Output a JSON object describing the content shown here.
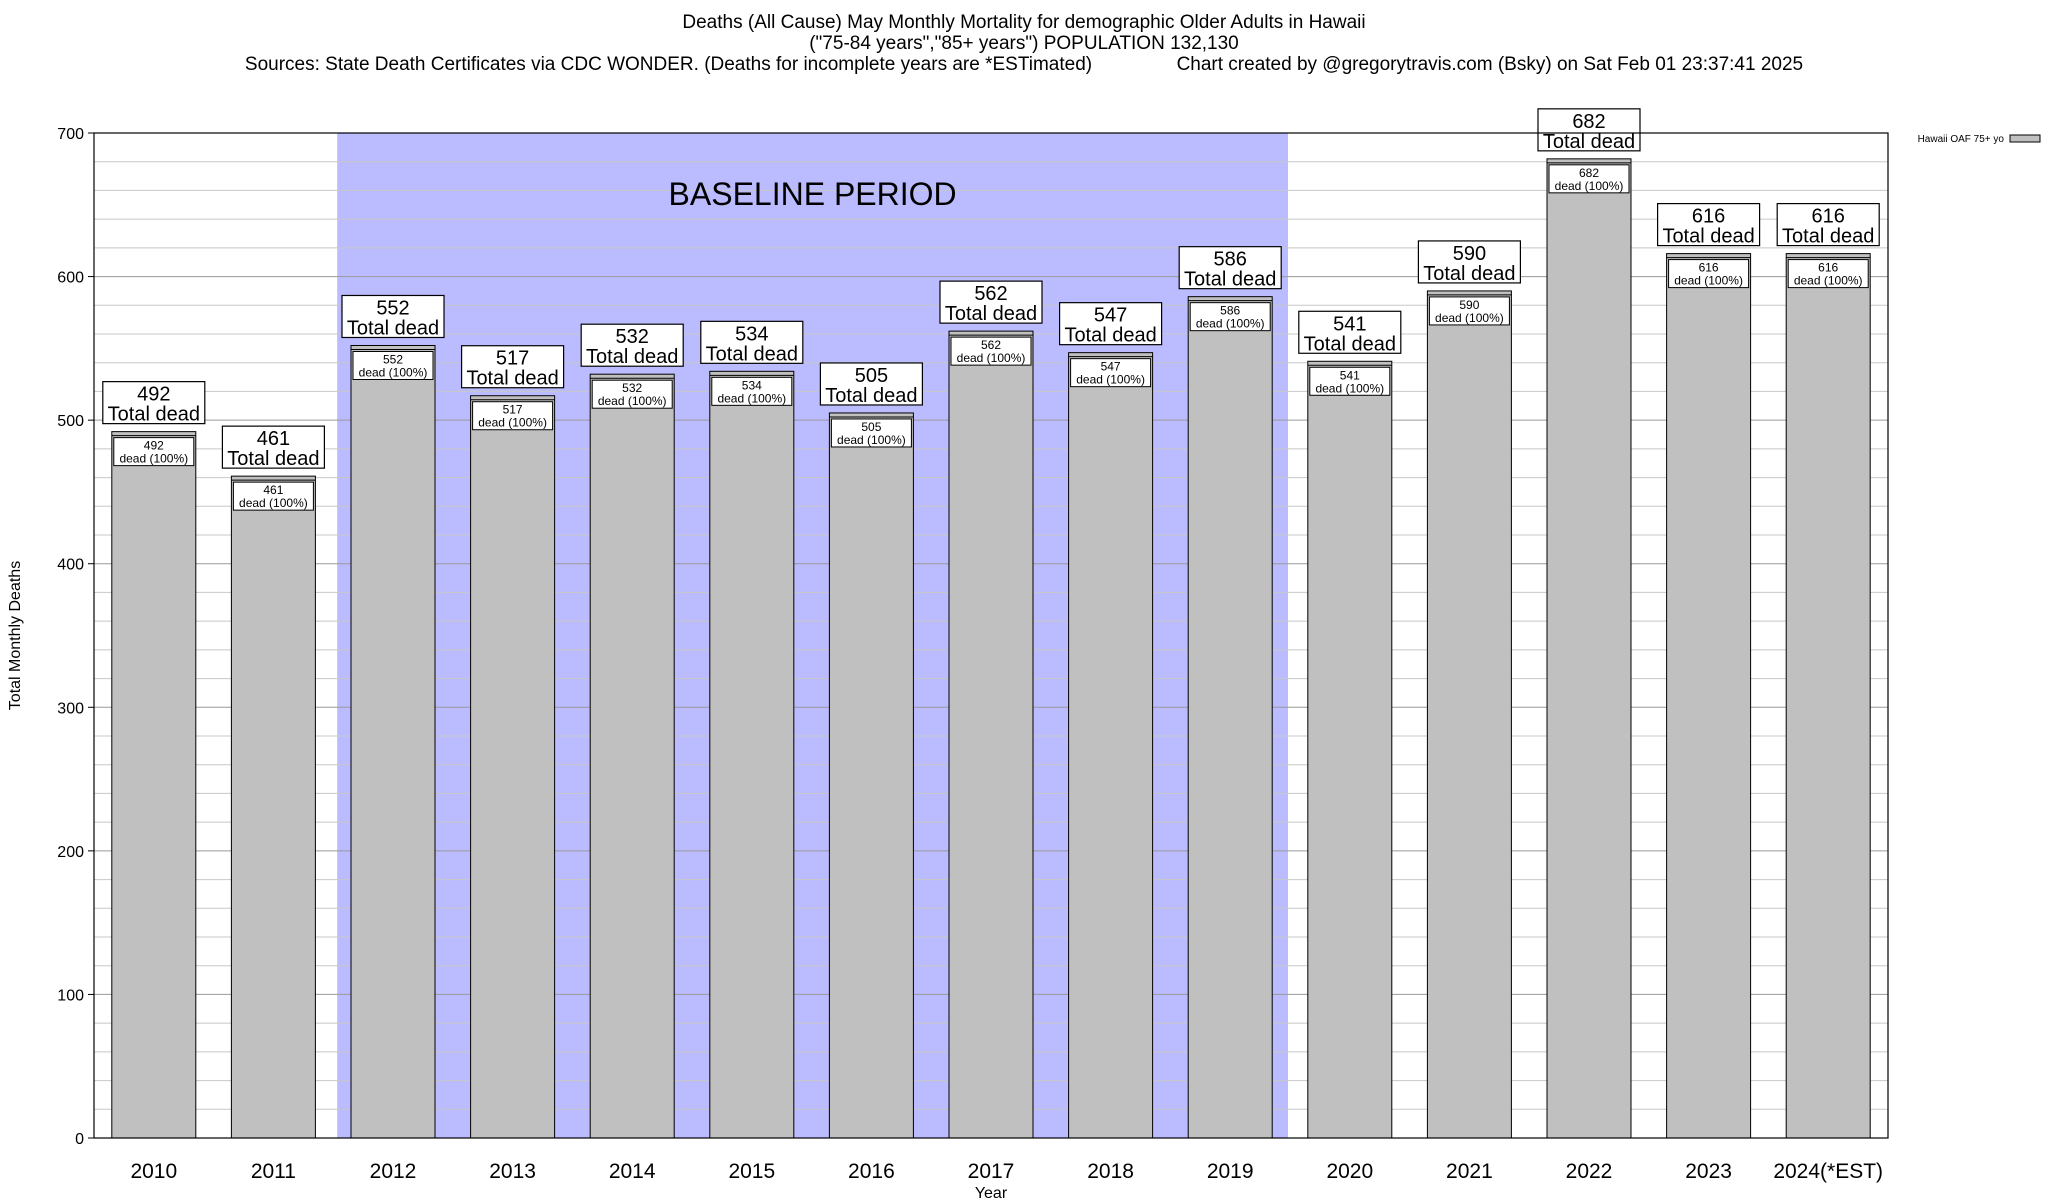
{
  "titles": {
    "line1": "Deaths (All Cause) May Monthly Mortality for demographic Older Adults in Hawaii",
    "line2": "(\"75-84 years\",\"85+ years\") POPULATION 132,130",
    "sources": "Sources: State Death Certificates via CDC WONDER. (Deaths for incomplete years are *ESTimated)",
    "credit": "Chart created by @gregorytravis.com (Bsky) on Sat Feb 01 23:37:41 2025"
  },
  "chart_data": {
    "type": "bar",
    "title": "Deaths (All Cause) May Monthly Mortality for demographic Older Adults in Hawaii",
    "xlabel": "Year",
    "ylabel": "Total Monthly Deaths",
    "ylim": [
      0,
      700
    ],
    "yticks": [
      0,
      100,
      200,
      300,
      400,
      500,
      600,
      700
    ],
    "grid": true,
    "categories": [
      "2010",
      "2011",
      "2012",
      "2013",
      "2014",
      "2015",
      "2016",
      "2017",
      "2018",
      "2019",
      "2020",
      "2021",
      "2022",
      "2023",
      "2024(*EST)"
    ],
    "series": [
      {
        "name": "Hawaii OAF 75+ yo",
        "color": "#c0c0c0",
        "values": [
          492,
          461,
          552,
          517,
          532,
          534,
          505,
          562,
          547,
          586,
          541,
          590,
          682,
          616,
          616
        ]
      }
    ],
    "total_label": "Total dead",
    "inner_label": "dead (100%)",
    "baseline": {
      "label": "BASELINE PERIOD",
      "from": "2012",
      "to": "2019",
      "color": "#bbbbff"
    },
    "legend": {
      "position": "top-right",
      "entry": "Hawaii OAF 75+ yo"
    }
  }
}
